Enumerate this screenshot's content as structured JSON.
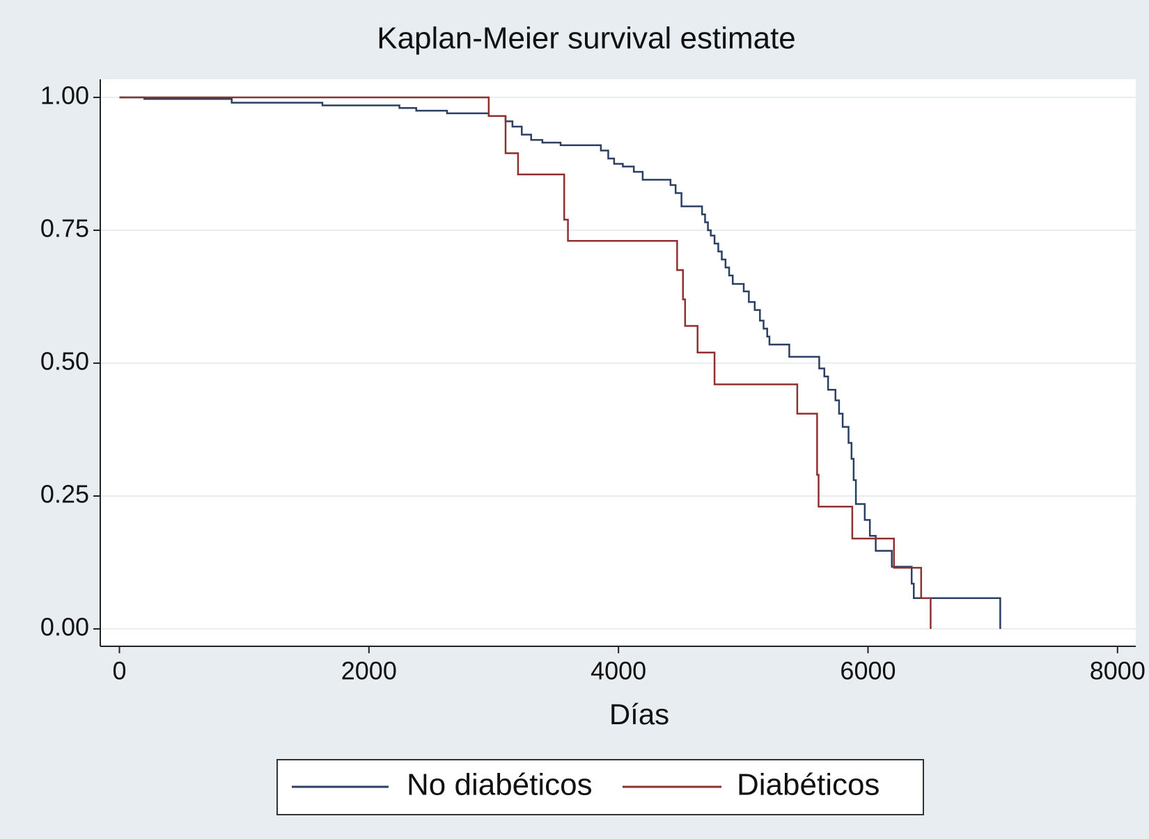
{
  "chart_data": {
    "type": "step",
    "title": "Kaplan-Meier survival estimate",
    "x_label": "Días",
    "xlim": [
      0,
      8000
    ],
    "xticks": [
      0,
      2000,
      4000,
      6000,
      8000
    ],
    "ylim": [
      0,
      1
    ],
    "yticks": [
      {
        "value": 0,
        "label": "0.00"
      },
      {
        "value": 0.25,
        "label": "0.25"
      },
      {
        "value": 0.5,
        "label": "0.50"
      },
      {
        "value": 0.75,
        "label": "0.75"
      },
      {
        "value": 1,
        "label": "1.00"
      }
    ],
    "grid": true,
    "legend": "bottom",
    "series": [
      {
        "name": "No diabéticos",
        "color": "#2b3f63",
        "x": [
          0,
          200,
          900,
          1627,
          2244,
          2379,
          2626,
          2960,
          3095,
          3150,
          3225,
          3300,
          3390,
          3536,
          3859,
          3918,
          3965,
          4035,
          4123,
          4194,
          4417,
          4458,
          4505,
          4670,
          4694,
          4717,
          4740,
          4770,
          4800,
          4828,
          4858,
          4887,
          4916,
          5004,
          5045,
          5092,
          5134,
          5163,
          5192,
          5210,
          5369,
          5609,
          5650,
          5680,
          5739,
          5768,
          5797,
          5844,
          5868,
          5885,
          5903,
          5974,
          6015,
          6062,
          6191,
          6350,
          6367,
          7060
        ],
        "values": [
          1,
          0.997,
          0.99,
          0.985,
          0.98,
          0.975,
          0.97,
          0.965,
          0.955,
          0.945,
          0.93,
          0.92,
          0.915,
          0.91,
          0.9,
          0.885,
          0.875,
          0.87,
          0.86,
          0.845,
          0.835,
          0.82,
          0.795,
          0.78,
          0.765,
          0.75,
          0.74,
          0.725,
          0.71,
          0.695,
          0.68,
          0.665,
          0.649,
          0.635,
          0.615,
          0.6,
          0.58,
          0.565,
          0.55,
          0.535,
          0.512,
          0.49,
          0.475,
          0.45,
          0.43,
          0.405,
          0.38,
          0.35,
          0.32,
          0.28,
          0.235,
          0.205,
          0.175,
          0.147,
          0.117,
          0.085,
          0.058,
          0
        ]
      },
      {
        "name": "Diabéticos",
        "color": "#8e3030",
        "x": [
          0,
          2960,
          3095,
          3195,
          3565,
          3595,
          4470,
          4517,
          4534,
          4634,
          4770,
          5433,
          5592,
          5604,
          5874,
          6208,
          6426,
          6502
        ],
        "values": [
          1,
          0.965,
          0.895,
          0.855,
          0.77,
          0.73,
          0.675,
          0.62,
          0.57,
          0.52,
          0.46,
          0.405,
          0.29,
          0.23,
          0.17,
          0.115,
          0.058,
          0
        ]
      }
    ]
  }
}
